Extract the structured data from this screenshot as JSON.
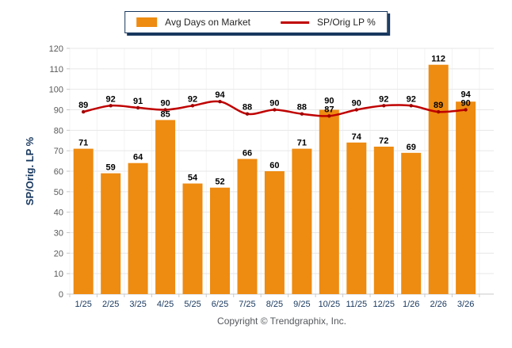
{
  "legend": {
    "bar_label": "Avg Days on Market",
    "line_label": "SP/Orig LP %"
  },
  "y_axis_title": "SP/Orig. LP %",
  "footer": {
    "copyright": "Copyright © Trendgraphix, Inc."
  },
  "colors": {
    "bar": "#EE8B11",
    "line": "#C00000",
    "marker": "#A00000",
    "grid_horizontal": "#E7E7E7",
    "grid_vertical": "#F3F3F3",
    "axis_line": "#C9C9C9",
    "tick": "#C9C9C9",
    "y_tick_text": "#595959",
    "x_label_text": "#17375E",
    "axis_title_text": "#17375E",
    "data_label_text": "#000000"
  },
  "chart_data": {
    "type": "bar",
    "title": "",
    "xlabel": "",
    "ylabel": "SP/Orig. LP %",
    "ylim": [
      0,
      120
    ],
    "ytick_step": 10,
    "grid": "horizontal major, faint vertical category boundaries",
    "legend_position": "top-center",
    "data_labels": true,
    "categories": [
      "1/25",
      "2/25",
      "3/25",
      "4/25",
      "5/25",
      "6/25",
      "7/25",
      "8/25",
      "9/25",
      "10/25",
      "11/25",
      "12/25",
      "1/26",
      "2/26",
      "3/26"
    ],
    "series": [
      {
        "name": "Avg Days on Market",
        "type": "bar",
        "color": "#EE8B11",
        "values": [
          71,
          59,
          64,
          85,
          54,
          52,
          66,
          60,
          71,
          90,
          74,
          72,
          69,
          112,
          94
        ]
      },
      {
        "name": "SP/Orig LP %",
        "type": "line",
        "color": "#C00000",
        "smooth": true,
        "values": [
          89,
          92,
          91,
          90,
          92,
          94,
          88,
          90,
          88,
          87,
          90,
          92,
          92,
          89,
          90
        ]
      }
    ]
  }
}
